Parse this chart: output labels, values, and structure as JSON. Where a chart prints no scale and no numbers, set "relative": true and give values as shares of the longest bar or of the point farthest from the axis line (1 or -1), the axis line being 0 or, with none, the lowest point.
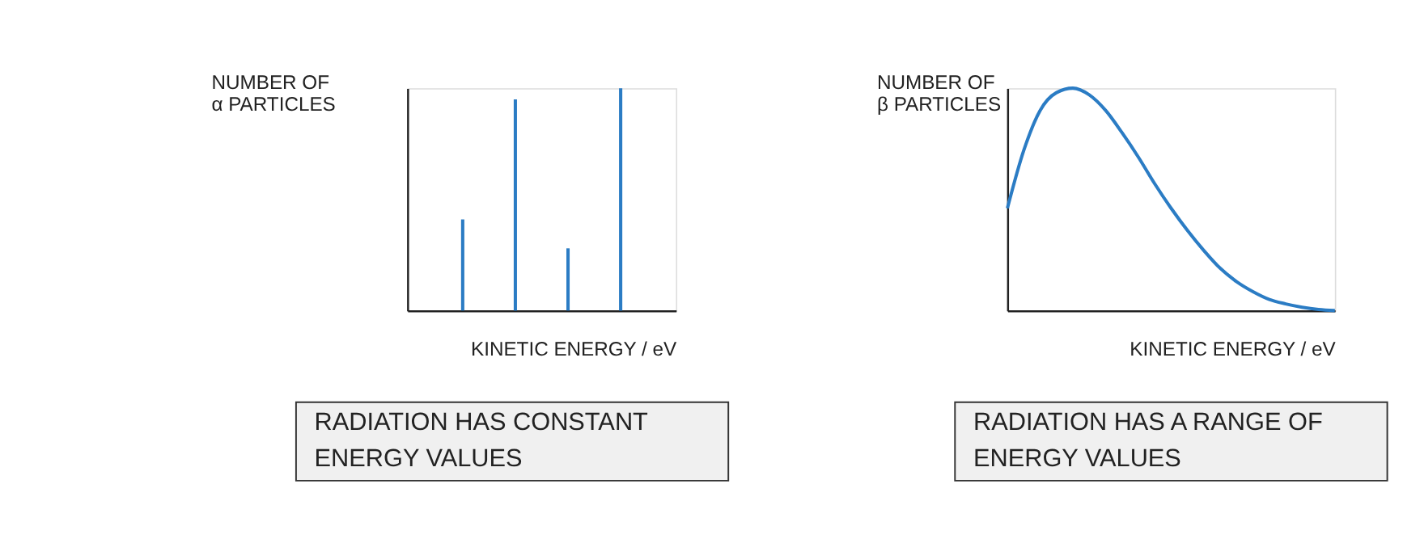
{
  "chart_data": [
    {
      "type": "bar",
      "xlabel": "KINETIC  ENERGY / eV",
      "ylabel": "NUMBER OF α PARTICLES",
      "categories": [
        null,
        null,
        null,
        null
      ],
      "values": [
        0.41,
        0.95,
        0.28,
        1.0
      ],
      "color": "#2b7cc4",
      "relative": true,
      "tick_labels": false,
      "annotations": [
        "RADIATION HAS CONSTANT ENERGY VALUES"
      ]
    },
    {
      "type": "line",
      "xlabel": "KINETIC  ENERGY / eV",
      "ylabel": "NUMBER OF β PARTICLES",
      "categories": [
        null,
        null,
        null,
        null,
        null,
        null,
        null,
        null,
        null,
        null,
        null,
        null,
        null,
        null,
        null,
        null,
        null,
        null,
        null,
        null,
        null
      ],
      "values": [
        0.46,
        0.72,
        0.9,
        0.98,
        1.0,
        0.97,
        0.9,
        0.8,
        0.69,
        0.57,
        0.46,
        0.36,
        0.27,
        0.19,
        0.13,
        0.085,
        0.05,
        0.03,
        0.015,
        0.005,
        0.0
      ],
      "color": "#2b7cc4",
      "relative": true,
      "tick_labels": false,
      "annotations": [
        "RADIATION HAS A RANGE OF ENERGY VALUES"
      ]
    }
  ]
}
